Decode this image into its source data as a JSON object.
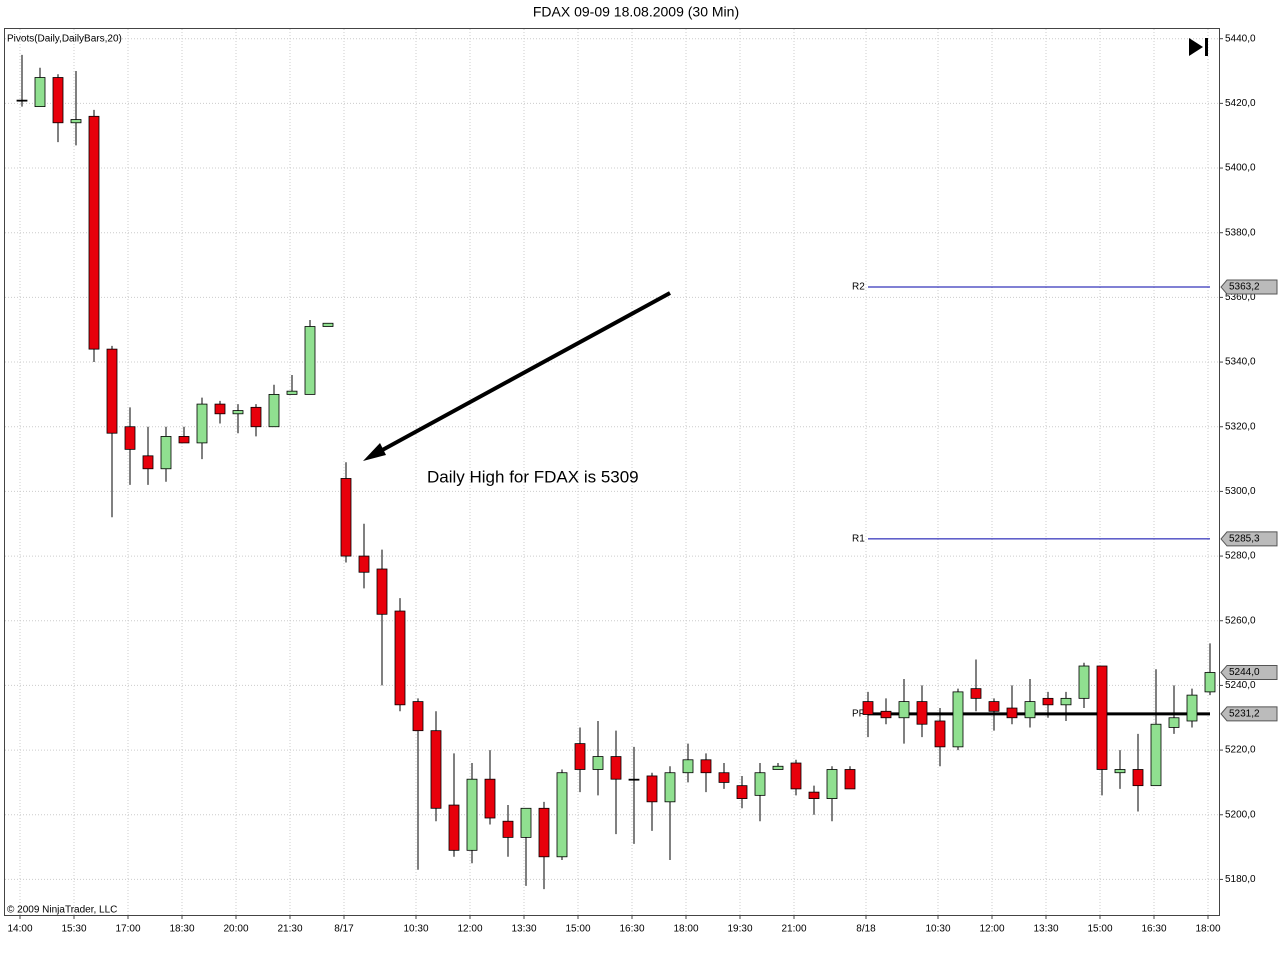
{
  "chart_data": {
    "type": "candlestick",
    "title": "FDAX 09-09  18.08.2009 (30 Min)",
    "indicator": "Pivots(Daily,DailyBars,20)",
    "copyright": "© 2009 NinjaTrader, LLC",
    "annotation": "Daily High for FDAX is 5309",
    "categories": [
      "14:00",
      null,
      null,
      "15:30",
      null,
      null,
      "17:00",
      null,
      null,
      "18:30",
      null,
      null,
      "20:00",
      null,
      null,
      "21:30",
      null,
      null,
      "8/17",
      null,
      null,
      null,
      "10:30",
      null,
      null,
      "12:00",
      null,
      null,
      "13:30",
      null,
      null,
      "15:00",
      null,
      null,
      "16:30",
      null,
      null,
      "18:00",
      null,
      null,
      "19:30",
      null,
      null,
      "21:00",
      null,
      null,
      null,
      "8/18",
      null,
      null,
      null,
      "10:30",
      null,
      null,
      "12:00",
      null,
      null,
      "13:30",
      null,
      null,
      "15:00",
      null,
      null,
      "16:30",
      null,
      null,
      "18:00"
    ],
    "open": [
      5421,
      5419,
      5428,
      5414,
      5416,
      5344,
      5320,
      5311,
      5307,
      5317,
      5315,
      5327,
      5324,
      5326,
      5320,
      5330,
      5330,
      5351,
      5304,
      5280,
      5276,
      5263,
      5235,
      5226,
      5203,
      5189,
      5211,
      5198,
      5193,
      5202,
      5187,
      5222,
      5214,
      5218,
      5211,
      5212,
      5204,
      5213,
      5217,
      5213,
      5209,
      5206,
      5214,
      5216,
      5207,
      5205,
      5214,
      5235,
      5232,
      5230,
      5235,
      5229,
      5221,
      5239,
      5235,
      5233,
      5230,
      5236,
      5234,
      5236,
      5246,
      5213,
      5214,
      5209,
      5227,
      5229,
      5238
    ],
    "high": [
      5435,
      5431,
      5429,
      5430,
      5418,
      5345,
      5326,
      5320,
      5320,
      5320,
      5329,
      5328,
      5327,
      5327,
      5333,
      5336,
      5353,
      5352,
      5309,
      5290,
      5282,
      5267,
      5236,
      5232,
      5219,
      5216,
      5220,
      5203,
      5202,
      5204,
      5214,
      5227,
      5229,
      5226,
      5221,
      5213,
      5215,
      5222,
      5219,
      5216,
      5212,
      5216,
      5216,
      5217,
      5209,
      5215,
      5215,
      5238,
      5236,
      5242,
      5240,
      5233,
      5239,
      5248,
      5236,
      5240,
      5242,
      5238,
      5238,
      5247,
      5246,
      5220,
      5225,
      5245,
      5240,
      5239,
      5253
    ],
    "low": [
      5419,
      5419,
      5408,
      5407,
      5340,
      5292,
      5302,
      5302,
      5303,
      5315,
      5310,
      5321,
      5318,
      5317,
      5320,
      5330,
      5330,
      5351,
      5278,
      5270,
      5240,
      5232,
      5183,
      5198,
      5187,
      5185,
      5197,
      5187,
      5178,
      5177,
      5186,
      5207,
      5206,
      5194,
      5191,
      5195,
      5186,
      5210,
      5207,
      5208,
      5202,
      5198,
      5215,
      5206,
      5200,
      5198,
      5208,
      5224,
      5228,
      5222,
      5224,
      5215,
      5220,
      5232,
      5226,
      5228,
      5227,
      5230,
      5229,
      5233,
      5206,
      5208,
      5201,
      5209,
      5225,
      5227,
      5237
    ],
    "close": [
      5421,
      5428,
      5414,
      5415,
      5344,
      5318,
      5313,
      5307,
      5317,
      5315,
      5327,
      5324,
      5325,
      5320,
      5330,
      5331,
      5351,
      5352,
      5280,
      5275,
      5262,
      5234,
      5226,
      5202,
      5189,
      5211,
      5199,
      5193,
      5202,
      5187,
      5213,
      5214,
      5218,
      5211,
      5211,
      5204,
      5213,
      5217,
      5213,
      5210,
      5205,
      5213,
      5215,
      5208,
      5205,
      5214,
      5208,
      5231,
      5230,
      5235,
      5228,
      5221,
      5238,
      5236,
      5232,
      5230,
      5235,
      5234,
      5236,
      5246,
      5214,
      5214,
      5209,
      5228,
      5230,
      5237,
      5244
    ],
    "up_color": "#90e090",
    "down_color": "#e8000b",
    "pivots": [
      {
        "name": "R2",
        "value": 5363.2,
        "label": "5363,2",
        "color": "#0000aa"
      },
      {
        "name": "R1",
        "value": 5285.3,
        "label": "5285,3",
        "color": "#0000aa"
      },
      {
        "name": "PP",
        "value": 5231.2,
        "label": "5231,2",
        "color": "#000000"
      }
    ],
    "last_price": {
      "value": 5244,
      "label": "5244,0"
    },
    "ylim": [
      5169,
      5443
    ],
    "yticks": [
      {
        "value": 5180,
        "label": "5180,0"
      },
      {
        "value": 5200,
        "label": "5200,0"
      },
      {
        "value": 5220,
        "label": "5220,0"
      },
      {
        "value": 5240,
        "label": "5240,0"
      },
      {
        "value": 5260,
        "label": "5260,0"
      },
      {
        "value": 5280,
        "label": "5280,0"
      },
      {
        "value": 5300,
        "label": "5300,0"
      },
      {
        "value": 5320,
        "label": "5320,0"
      },
      {
        "value": 5340,
        "label": "5340,0"
      },
      {
        "value": 5360,
        "label": "5360,0"
      },
      {
        "value": 5380,
        "label": "5380,0"
      },
      {
        "value": 5400,
        "label": "5400,0"
      },
      {
        "value": 5420,
        "label": "5420,0"
      },
      {
        "value": 5440,
        "label": "5440,0"
      }
    ],
    "grid": true
  }
}
